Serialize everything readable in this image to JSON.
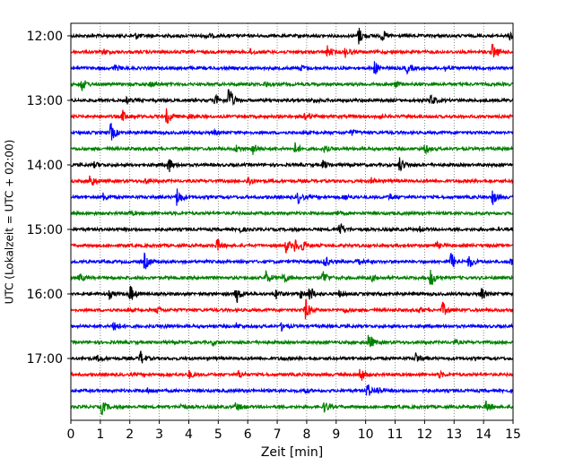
{
  "chart_data": {
    "type": "line",
    "title": "",
    "xlabel": "Zeit  [min]",
    "ylabel": "UTC (Lokalzeit = UTC + 02:00)",
    "xlim": [
      0,
      15
    ],
    "x_ticks": [
      0,
      1,
      2,
      3,
      4,
      5,
      6,
      7,
      8,
      9,
      10,
      11,
      12,
      13,
      14,
      15
    ],
    "x_tick_labels": [
      "0",
      "1",
      "2",
      "3",
      "4",
      "5",
      "6",
      "7",
      "8",
      "9",
      "10",
      "11",
      "12",
      "13",
      "14",
      "15"
    ],
    "y_tick_labels": [
      "12:00",
      "13:00",
      "14:00",
      "15:00",
      "16:00",
      "17:00"
    ],
    "y_tick_rows": [
      0,
      4,
      8,
      12,
      16,
      20
    ],
    "vertical_grid": true,
    "vertical_grid_style": "dotted",
    "color_cycle": [
      "#000000",
      "#ff0000",
      "#0000ff",
      "#008000"
    ],
    "rows": [
      {
        "start": "12:00",
        "events": [
          [
            9.75,
            1.0
          ],
          [
            10.55,
            0.6
          ],
          [
            14.9,
            0.5
          ],
          [
            2.2,
            0.3
          ],
          [
            4.6,
            0.3
          ]
        ]
      },
      {
        "start": "12:15",
        "events": [
          [
            8.7,
            0.6
          ],
          [
            9.3,
            0.5
          ],
          [
            14.3,
            0.9
          ],
          [
            1.1,
            0.3
          ],
          [
            6.1,
            0.3
          ]
        ]
      },
      {
        "start": "12:30",
        "events": [
          [
            10.3,
            0.7
          ],
          [
            11.4,
            0.5
          ],
          [
            1.5,
            0.3
          ],
          [
            7.8,
            0.3
          ],
          [
            12.7,
            0.3
          ]
        ]
      },
      {
        "start": "12:45",
        "events": [
          [
            0.35,
            0.8
          ],
          [
            2.7,
            0.3
          ],
          [
            6.6,
            0.3
          ],
          [
            11.0,
            0.3
          ]
        ]
      },
      {
        "start": "13:00",
        "events": [
          [
            5.35,
            1.6
          ],
          [
            12.2,
            0.7
          ],
          [
            4.9,
            0.6
          ],
          [
            1.9,
            0.3
          ],
          [
            8.2,
            0.3
          ]
        ]
      },
      {
        "start": "13:15",
        "events": [
          [
            3.25,
            0.9
          ],
          [
            7.95,
            0.6
          ],
          [
            1.75,
            0.6
          ],
          [
            4.0,
            0.3
          ],
          [
            10.4,
            0.3
          ]
        ]
      },
      {
        "start": "13:30",
        "events": [
          [
            1.35,
            1.0
          ],
          [
            4.8,
            0.3
          ],
          [
            9.5,
            0.3
          ]
        ]
      },
      {
        "start": "13:45",
        "events": [
          [
            6.15,
            0.7
          ],
          [
            7.6,
            0.6
          ],
          [
            5.6,
            0.4
          ],
          [
            12.0,
            0.5
          ],
          [
            8.6,
            0.3
          ]
        ]
      },
      {
        "start": "14:00",
        "events": [
          [
            3.3,
            0.9
          ],
          [
            11.15,
            0.8
          ],
          [
            8.55,
            0.4
          ],
          [
            0.8,
            0.3
          ]
        ]
      },
      {
        "start": "14:15",
        "events": [
          [
            0.65,
            0.9
          ],
          [
            6.0,
            0.6
          ],
          [
            2.5,
            0.3
          ],
          [
            10.2,
            0.3
          ]
        ]
      },
      {
        "start": "14:30",
        "events": [
          [
            3.6,
            1.0
          ],
          [
            7.7,
            0.7
          ],
          [
            14.3,
            0.8
          ],
          [
            1.1,
            0.4
          ],
          [
            10.8,
            0.4
          ],
          [
            9.3,
            0.3
          ]
        ]
      },
      {
        "start": "14:45",
        "events": [
          [
            2.0,
            0.2
          ],
          [
            9.0,
            0.2
          ]
        ]
      },
      {
        "start": "15:00",
        "events": [
          [
            9.1,
            0.9
          ],
          [
            5.7,
            0.3
          ],
          [
            11.8,
            0.3
          ]
        ]
      },
      {
        "start": "15:15",
        "events": [
          [
            4.95,
            0.7
          ],
          [
            7.3,
            0.7
          ],
          [
            7.6,
            0.7
          ],
          [
            7.85,
            0.6
          ],
          [
            12.4,
            0.3
          ]
        ]
      },
      {
        "start": "15:30",
        "events": [
          [
            2.5,
            0.9
          ],
          [
            12.9,
            1.0
          ],
          [
            13.5,
            0.7
          ],
          [
            8.6,
            0.6
          ],
          [
            9.7,
            0.5
          ],
          [
            14.9,
            0.4
          ]
        ]
      },
      {
        "start": "15:45",
        "events": [
          [
            6.6,
            0.8
          ],
          [
            7.2,
            0.6
          ],
          [
            8.55,
            0.8
          ],
          [
            12.2,
            1.0
          ],
          [
            0.3,
            0.4
          ],
          [
            10.2,
            0.3
          ]
        ]
      },
      {
        "start": "16:00",
        "events": [
          [
            2.0,
            1.0
          ],
          [
            5.6,
            1.1
          ],
          [
            8.1,
            0.9
          ],
          [
            6.95,
            0.5
          ],
          [
            7.8,
            0.5
          ],
          [
            13.9,
            0.7
          ],
          [
            1.3,
            0.4
          ],
          [
            9.1,
            0.3
          ]
        ]
      },
      {
        "start": "16:15",
        "events": [
          [
            7.95,
            1.2
          ],
          [
            12.6,
            0.8
          ],
          [
            2.9,
            0.4
          ],
          [
            9.3,
            0.3
          ],
          [
            11.8,
            0.3
          ]
        ]
      },
      {
        "start": "16:30",
        "events": [
          [
            1.45,
            0.8
          ],
          [
            7.15,
            0.4
          ],
          [
            5.6,
            0.3
          ],
          [
            3.2,
            0.2
          ]
        ]
      },
      {
        "start": "16:45",
        "events": [
          [
            10.1,
            1.0
          ],
          [
            4.8,
            0.2
          ],
          [
            13.0,
            0.2
          ]
        ]
      },
      {
        "start": "17:00",
        "events": [
          [
            2.35,
            0.8
          ],
          [
            11.7,
            0.6
          ],
          [
            0.9,
            0.3
          ],
          [
            7.1,
            0.2
          ]
        ]
      },
      {
        "start": "17:15",
        "events": [
          [
            9.8,
            0.9
          ],
          [
            4.0,
            0.4
          ],
          [
            5.7,
            0.4
          ],
          [
            12.5,
            0.3
          ]
        ]
      },
      {
        "start": "17:30",
        "events": [
          [
            10.05,
            0.8
          ],
          [
            10.4,
            0.5
          ],
          [
            7.9,
            0.3
          ],
          [
            2.6,
            0.2
          ]
        ]
      },
      {
        "start": "17:45",
        "events": [
          [
            1.05,
            0.8
          ],
          [
            5.6,
            0.5
          ],
          [
            8.6,
            0.6
          ],
          [
            14.1,
            0.7
          ],
          [
            3.7,
            0.3
          ]
        ]
      }
    ]
  }
}
